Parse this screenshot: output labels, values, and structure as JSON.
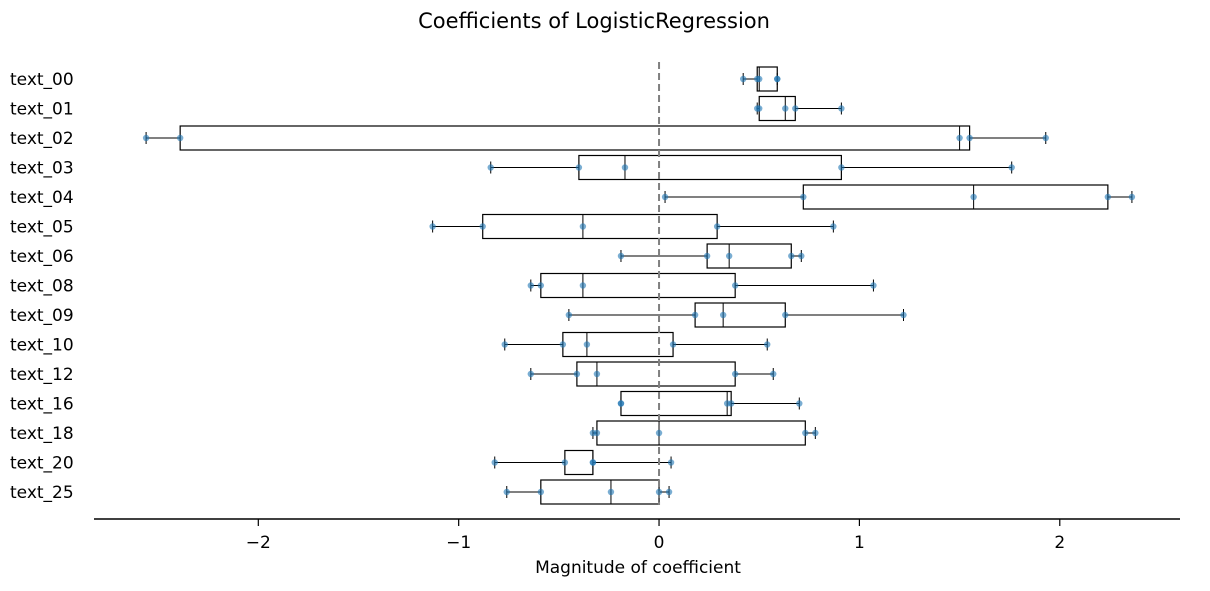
{
  "chart_data": {
    "type": "box",
    "title": "Coefficients of LogisticRegression",
    "xlabel": "Magnitude of coefficient",
    "ylabel": "",
    "xlim": [
      -2.82,
      2.6
    ],
    "xticks": [
      -2,
      -1,
      0,
      1,
      2
    ],
    "xtick_labels": [
      "−2",
      "−1",
      "0",
      "1",
      "2"
    ],
    "reference_line_x": 0,
    "grid": false,
    "legend": null,
    "colors": {
      "box_edge": "#000000",
      "points": "#1f77b4",
      "ref_line": "#808080"
    },
    "categories": [
      "text_00",
      "text_01",
      "text_02",
      "text_03",
      "text_04",
      "text_05",
      "text_06",
      "text_08",
      "text_09",
      "text_10",
      "text_12",
      "text_16",
      "text_18",
      "text_20",
      "text_25"
    ],
    "boxes": [
      {
        "label": "text_00",
        "whislo": 0.42,
        "q1": 0.49,
        "med": 0.5,
        "q3": 0.59,
        "whishi": 0.59,
        "points": [
          0.42,
          0.49,
          0.5,
          0.59,
          0.59
        ]
      },
      {
        "label": "text_01",
        "whislo": 0.49,
        "q1": 0.5,
        "med": 0.63,
        "q3": 0.68,
        "whishi": 0.91,
        "points": [
          0.49,
          0.5,
          0.63,
          0.68,
          0.91
        ]
      },
      {
        "label": "text_02",
        "whislo": -2.56,
        "q1": -2.39,
        "med": 1.5,
        "q3": 1.55,
        "whishi": 1.93,
        "points": [
          -2.56,
          -2.39,
          1.5,
          1.55,
          1.93
        ]
      },
      {
        "label": "text_03",
        "whislo": -0.84,
        "q1": -0.4,
        "med": -0.17,
        "q3": 0.91,
        "whishi": 1.76,
        "points": [
          -0.84,
          -0.4,
          -0.17,
          0.91,
          1.76
        ]
      },
      {
        "label": "text_04",
        "whislo": 0.03,
        "q1": 0.72,
        "med": 1.57,
        "q3": 2.24,
        "whishi": 2.36,
        "points": [
          0.03,
          0.72,
          1.57,
          2.24,
          2.36
        ]
      },
      {
        "label": "text_05",
        "whislo": -1.13,
        "q1": -0.88,
        "med": -0.38,
        "q3": 0.29,
        "whishi": 0.87,
        "points": [
          -1.13,
          -0.88,
          -0.38,
          0.29,
          0.87
        ]
      },
      {
        "label": "text_06",
        "whislo": -0.19,
        "q1": 0.24,
        "med": 0.35,
        "q3": 0.66,
        "whishi": 0.71,
        "points": [
          -0.19,
          0.24,
          0.35,
          0.66,
          0.71
        ]
      },
      {
        "label": "text_08",
        "whislo": -0.64,
        "q1": -0.59,
        "med": -0.38,
        "q3": 0.38,
        "whishi": 1.07,
        "points": [
          -0.64,
          -0.59,
          -0.38,
          0.38,
          1.07
        ]
      },
      {
        "label": "text_09",
        "whislo": -0.45,
        "q1": 0.18,
        "med": 0.32,
        "q3": 0.63,
        "whishi": 1.22,
        "points": [
          -0.45,
          0.18,
          0.32,
          0.63,
          1.22
        ]
      },
      {
        "label": "text_10",
        "whislo": -0.77,
        "q1": -0.48,
        "med": -0.36,
        "q3": 0.07,
        "whishi": 0.54,
        "points": [
          -0.77,
          -0.48,
          -0.36,
          0.07,
          0.54
        ]
      },
      {
        "label": "text_12",
        "whislo": -0.64,
        "q1": -0.41,
        "med": -0.31,
        "q3": 0.38,
        "whishi": 0.57,
        "points": [
          -0.64,
          -0.41,
          -0.31,
          0.38,
          0.57
        ]
      },
      {
        "label": "text_16",
        "whislo": -0.19,
        "q1": -0.19,
        "med": 0.34,
        "q3": 0.36,
        "whishi": 0.7,
        "points": [
          -0.19,
          -0.19,
          0.34,
          0.36,
          0.7
        ]
      },
      {
        "label": "text_18",
        "whislo": -0.33,
        "q1": -0.31,
        "med": 0.0,
        "q3": 0.73,
        "whishi": 0.78,
        "points": [
          -0.33,
          -0.31,
          0.0,
          0.73,
          0.78
        ]
      },
      {
        "label": "text_20",
        "whislo": -0.82,
        "q1": -0.47,
        "med": -0.33,
        "q3": -0.33,
        "whishi": 0.06,
        "points": [
          -0.82,
          -0.47,
          -0.33,
          -0.33,
          0.06
        ]
      },
      {
        "label": "text_25",
        "whislo": -0.76,
        "q1": -0.59,
        "med": -0.24,
        "q3": 0.0,
        "whishi": 0.05,
        "points": [
          -0.76,
          -0.59,
          -0.24,
          0.0,
          0.05
        ]
      }
    ]
  }
}
